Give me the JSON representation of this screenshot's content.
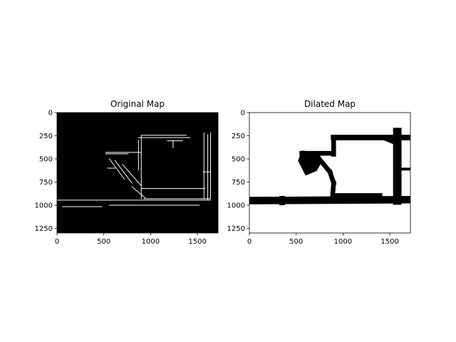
{
  "chart_data": [
    {
      "type": "heatmap",
      "title": "Original Map",
      "xlabel": "",
      "ylabel": "",
      "xlim": [
        0,
        1720
      ],
      "ylim": [
        1300,
        0
      ],
      "xticks": [
        0,
        500,
        1000,
        1500
      ],
      "yticks": [
        0,
        250,
        500,
        750,
        1000,
        1250
      ],
      "colormap": {
        "background": "#000000",
        "foreground": "#ffffff"
      },
      "features": [
        {
          "kind": "line",
          "points": [
            [
              0,
              945
            ],
            [
              1640,
              945
            ]
          ]
        },
        {
          "kind": "line",
          "points": [
            [
              60,
              1015
            ],
            [
              480,
              1015
            ]
          ]
        },
        {
          "kind": "line",
          "points": [
            [
              560,
              1000
            ],
            [
              1520,
              1000
            ]
          ]
        },
        {
          "kind": "line",
          "points": [
            [
              900,
              245
            ],
            [
              1380,
              245
            ]
          ]
        },
        {
          "kind": "line",
          "points": [
            [
              870,
              270
            ],
            [
              1420,
              270
            ]
          ]
        },
        {
          "kind": "line",
          "points": [
            [
              520,
              430
            ],
            [
              900,
              430
            ]
          ]
        },
        {
          "kind": "line",
          "points": [
            [
              520,
              445
            ],
            [
              760,
              445
            ]
          ]
        },
        {
          "kind": "line",
          "points": [
            [
              1180,
              305
            ],
            [
              1340,
              305
            ]
          ]
        },
        {
          "kind": "line",
          "points": [
            [
              900,
              820
            ],
            [
              1580,
              820
            ]
          ]
        },
        {
          "kind": "line",
          "points": [
            [
              930,
              930
            ],
            [
              1640,
              930
            ]
          ]
        },
        {
          "kind": "line",
          "points": [
            [
              900,
              250
            ],
            [
              900,
              930
            ]
          ]
        },
        {
          "kind": "line",
          "points": [
            [
              1570,
              220
            ],
            [
              1570,
              930
            ]
          ]
        },
        {
          "kind": "line",
          "points": [
            [
              1610,
              240
            ],
            [
              1610,
              940
            ]
          ]
        },
        {
          "kind": "line",
          "points": [
            [
              1640,
              220
            ],
            [
              1640,
              930
            ]
          ]
        },
        {
          "kind": "line",
          "points": [
            [
              870,
              300
            ],
            [
              870,
              620
            ]
          ]
        },
        {
          "kind": "line",
          "points": [
            [
              560,
              500
            ],
            [
              720,
              720
            ]
          ]
        },
        {
          "kind": "line",
          "points": [
            [
              620,
              520
            ],
            [
              800,
              760
            ]
          ]
        },
        {
          "kind": "line",
          "points": [
            [
              700,
              560
            ],
            [
              900,
              790
            ]
          ]
        },
        {
          "kind": "line",
          "points": [
            [
              800,
              800
            ],
            [
              940,
              920
            ]
          ]
        },
        {
          "kind": "line",
          "points": [
            [
              1240,
              300
            ],
            [
              1240,
              380
            ]
          ]
        },
        {
          "kind": "line",
          "points": [
            [
              540,
              600
            ],
            [
              620,
              600
            ]
          ]
        },
        {
          "kind": "line",
          "points": [
            [
              1560,
              640
            ],
            [
              1640,
              640
            ]
          ]
        }
      ]
    },
    {
      "type": "heatmap",
      "title": "Dilated Map",
      "xlabel": "",
      "ylabel": "",
      "xlim": [
        0,
        1720
      ],
      "ylim": [
        1300,
        0
      ],
      "xticks": [
        0,
        500,
        1000,
        1500
      ],
      "yticks": [
        0,
        250,
        500,
        750,
        1000,
        1250
      ],
      "colormap": {
        "background": "#ffffff",
        "foreground": "#000000"
      },
      "features": [
        {
          "kind": "band",
          "points": [
            [
              0,
              950
            ],
            [
              1720,
              940
            ]
          ],
          "width": 80
        },
        {
          "kind": "band",
          "points": [
            [
              900,
              270
            ],
            [
              1720,
              270
            ]
          ],
          "width": 60
        },
        {
          "kind": "band",
          "points": [
            [
              1580,
              210
            ],
            [
              1580,
              950
            ]
          ],
          "width": 90
        },
        {
          "kind": "band",
          "points": [
            [
              900,
              270
            ],
            [
              900,
              450
            ]
          ],
          "width": 50
        },
        {
          "kind": "band",
          "points": [
            [
              560,
              440
            ],
            [
              900,
              440
            ]
          ],
          "width": 50
        },
        {
          "kind": "band",
          "points": [
            [
              720,
              470
            ],
            [
              860,
              640
            ]
          ],
          "width": 50
        },
        {
          "kind": "band",
          "points": [
            [
              860,
              640
            ],
            [
              900,
              760
            ]
          ],
          "width": 50
        },
        {
          "kind": "band",
          "points": [
            [
              900,
              760
            ],
            [
              890,
              880
            ]
          ],
          "width": 50
        },
        {
          "kind": "band",
          "points": [
            [
              890,
              890
            ],
            [
              1400,
              890
            ]
          ],
          "width": 40
        },
        {
          "kind": "band",
          "points": [
            [
              1440,
              280
            ],
            [
              1540,
              320
            ]
          ],
          "width": 40
        },
        {
          "kind": "band",
          "points": [
            [
              1620,
              610
            ],
            [
              1720,
              610
            ]
          ],
          "width": 30
        },
        {
          "kind": "polygon",
          "points": [
            [
              560,
              410
            ],
            [
              740,
              430
            ],
            [
              780,
              520
            ],
            [
              720,
              630
            ],
            [
              600,
              680
            ],
            [
              560,
              600
            ],
            [
              520,
              520
            ]
          ]
        },
        {
          "kind": "polygon",
          "points": [
            [
              320,
              900
            ],
            [
              380,
              900
            ],
            [
              380,
              1000
            ],
            [
              320,
              1000
            ]
          ]
        }
      ]
    }
  ]
}
